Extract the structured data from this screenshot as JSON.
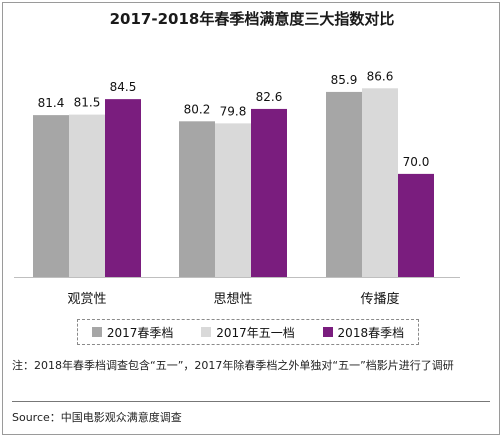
{
  "title": "2017-2018年春季档满意度三大指数对比",
  "chart_data": {
    "type": "bar",
    "categories": [
      "观赏性",
      "思想性",
      "传播度"
    ],
    "series": [
      {
        "name": "2017春季档",
        "values": [
          81.4,
          80.2,
          85.9
        ],
        "color": "#a6a6a6"
      },
      {
        "name": "2017年五一档",
        "values": [
          81.5,
          79.8,
          86.6
        ],
        "color": "#d9d9d9"
      },
      {
        "name": "2018春季档",
        "values": [
          84.5,
          82.6,
          70.0
        ],
        "color": "#7a1d7e"
      }
    ],
    "value_labels": [
      [
        "81.4",
        "81.5",
        "84.5"
      ],
      [
        "80.2",
        "79.8",
        "82.6"
      ],
      [
        "85.9",
        "86.6",
        "70.0"
      ]
    ],
    "ylim": [
      50,
      95
    ],
    "grid": false,
    "legend_position": "bottom"
  },
  "note": "注：2018年春季档调查包含“五一”，2017年除春季档之外单独对“五一”档影片进行了调研",
  "source": "Source：中国电影观众满意度调查"
}
